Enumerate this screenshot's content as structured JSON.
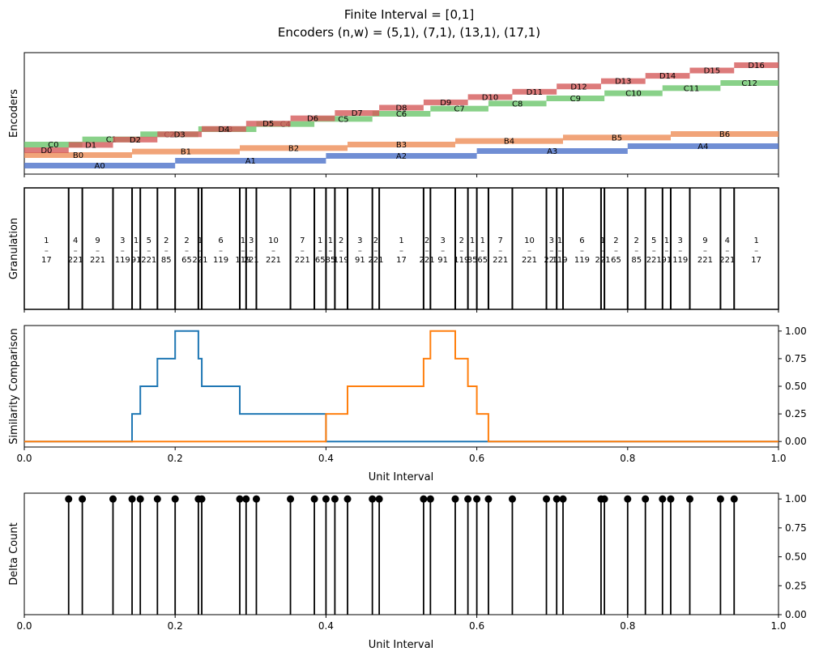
{
  "figure": {
    "title_line1": "Finite Interval = [0,1]",
    "title_line2": "Encoders (n,w) = (5,1), (7,1), (13,1), (17,1)"
  },
  "colors": {
    "A": "#4c72c9",
    "B": "#ee8d58",
    "C": "#6cc66c",
    "D": "#d45a5a",
    "series1": "#1f77b4",
    "series2": "#ff7f0e",
    "black": "#000000"
  },
  "chart_data": [
    {
      "panel": "encoders",
      "type": "bar",
      "ylabel": "Encoders",
      "xlim": [
        0,
        1
      ],
      "bar_label_prefix": {
        "A": "A",
        "B": "B",
        "C": "C",
        "D": "D"
      },
      "encoders": [
        {
          "key": "A",
          "n": 5
        },
        {
          "key": "B",
          "n": 7
        },
        {
          "key": "C",
          "n": 13
        },
        {
          "key": "D",
          "n": 17
        }
      ]
    },
    {
      "panel": "granulation",
      "type": "bar",
      "ylabel": "Granulation",
      "xlim": [
        0,
        1
      ],
      "boundaries": [
        0,
        0.0588,
        0.0769,
        0.1176,
        0.1429,
        0.1538,
        0.1765,
        0.2,
        0.2308,
        0.2353,
        0.2857,
        0.2941,
        0.3077,
        0.3529,
        0.3846,
        0.4,
        0.4118,
        0.4286,
        0.4615,
        0.4706,
        0.5294,
        0.5385,
        0.5714,
        0.5882,
        0.6,
        0.6154,
        0.6471,
        0.6923,
        0.7059,
        0.7143,
        0.7647,
        0.7692,
        0.8,
        0.8235,
        0.8462,
        0.8571,
        0.8824,
        0.9231,
        0.9412,
        1.0
      ],
      "fractions": [
        {
          "num": "1",
          "den": "17"
        },
        {
          "num": "4",
          "den": "221"
        },
        {
          "num": "9",
          "den": "221"
        },
        {
          "num": "3",
          "den": "119"
        },
        {
          "num": "1",
          "den": "91"
        },
        {
          "num": "5",
          "den": "221"
        },
        {
          "num": "2",
          "den": "85"
        },
        {
          "num": "2",
          "den": "65"
        },
        {
          "num": "1",
          "den": "221"
        },
        {
          "num": "6",
          "den": "119"
        },
        {
          "num": "1",
          "den": "119"
        },
        {
          "num": "3",
          "den": "221"
        },
        {
          "num": "10",
          "den": "221"
        },
        {
          "num": "7",
          "den": "221"
        },
        {
          "num": "1",
          "den": "65"
        },
        {
          "num": "1",
          "den": "85"
        },
        {
          "num": "2",
          "den": "119"
        },
        {
          "num": "3",
          "den": "91"
        },
        {
          "num": "2",
          "den": "221"
        },
        {
          "num": "1",
          "den": "17"
        },
        {
          "num": "2",
          "den": "221"
        },
        {
          "num": "3",
          "den": "91"
        },
        {
          "num": "2",
          "den": "119"
        },
        {
          "num": "1",
          "den": "85"
        },
        {
          "num": "1",
          "den": "65"
        },
        {
          "num": "7",
          "den": "221"
        },
        {
          "num": "10",
          "den": "221"
        },
        {
          "num": "3",
          "den": "221"
        },
        {
          "num": "1",
          "den": "119"
        },
        {
          "num": "6",
          "den": "119"
        },
        {
          "num": "1",
          "den": "221"
        },
        {
          "num": "2",
          "den": "65"
        },
        {
          "num": "2",
          "den": "85"
        },
        {
          "num": "5",
          "den": "221"
        },
        {
          "num": "1",
          "den": "91"
        },
        {
          "num": "3",
          "den": "119"
        },
        {
          "num": "9",
          "den": "221"
        },
        {
          "num": "4",
          "den": "221"
        },
        {
          "num": "1",
          "den": "17"
        }
      ]
    },
    {
      "panel": "similarity",
      "type": "line",
      "ylabel": "Similarity Comparison",
      "xlabel": "Unit Interval",
      "xlim": [
        0,
        1
      ],
      "ylim": [
        -0.05,
        1.05
      ],
      "xticks": [
        "0.0",
        "0.2",
        "0.4",
        "0.6",
        "0.8",
        "1.0"
      ],
      "yticks": [
        "0.00",
        "0.25",
        "0.50",
        "0.75",
        "1.00"
      ],
      "series": [
        {
          "step_points": [
            [
              0,
              0
            ],
            [
              0.1429,
              0
            ],
            [
              0.1429,
              0.25
            ],
            [
              0.1538,
              0.25
            ],
            [
              0.1538,
              0.5
            ],
            [
              0.1765,
              0.5
            ],
            [
              0.1765,
              0.75
            ],
            [
              0.2,
              0.75
            ],
            [
              0.2,
              1
            ],
            [
              0.2308,
              1
            ],
            [
              0.2308,
              0.75
            ],
            [
              0.2353,
              0.75
            ],
            [
              0.2353,
              0.5
            ],
            [
              0.2857,
              0.5
            ],
            [
              0.2857,
              0.25
            ],
            [
              0.4,
              0.25
            ],
            [
              0.4,
              0
            ],
            [
              1,
              0
            ]
          ]
        },
        {
          "step_points": [
            [
              0,
              0
            ],
            [
              0.4,
              0
            ],
            [
              0.4,
              0.25
            ],
            [
              0.4286,
              0.25
            ],
            [
              0.4286,
              0.5
            ],
            [
              0.5294,
              0.5
            ],
            [
              0.5294,
              0.75
            ],
            [
              0.5385,
              0.75
            ],
            [
              0.5385,
              1
            ],
            [
              0.5714,
              1
            ],
            [
              0.5714,
              0.75
            ],
            [
              0.5882,
              0.75
            ],
            [
              0.5882,
              0.5
            ],
            [
              0.6,
              0.5
            ],
            [
              0.6,
              0.25
            ],
            [
              0.6154,
              0.25
            ],
            [
              0.6154,
              0
            ],
            [
              1,
              0
            ]
          ]
        }
      ]
    },
    {
      "panel": "delta",
      "type": "scatter",
      "ylabel": "Delta Count",
      "xlabel": "Unit Interval",
      "xlim": [
        0,
        1
      ],
      "ylim": [
        0,
        1.05
      ],
      "xticks": [
        "0.0",
        "0.2",
        "0.4",
        "0.6",
        "0.8",
        "1.0"
      ],
      "yticks": [
        "0.00",
        "0.25",
        "0.50",
        "0.75",
        "1.00"
      ],
      "x": [
        0.0588,
        0.0769,
        0.1176,
        0.1429,
        0.1538,
        0.1765,
        0.2,
        0.2308,
        0.2353,
        0.2857,
        0.2941,
        0.3077,
        0.3529,
        0.3846,
        0.4,
        0.4118,
        0.4286,
        0.4615,
        0.4706,
        0.5294,
        0.5385,
        0.5714,
        0.5882,
        0.6,
        0.6154,
        0.6471,
        0.6923,
        0.7059,
        0.7143,
        0.7647,
        0.7692,
        0.8,
        0.8235,
        0.8462,
        0.8571,
        0.8824,
        0.9231,
        0.9412
      ],
      "y": [
        1,
        1,
        1,
        1,
        1,
        1,
        1,
        1,
        1,
        1,
        1,
        1,
        1,
        1,
        1,
        1,
        1,
        1,
        1,
        1,
        1,
        1,
        1,
        1,
        1,
        1,
        1,
        1,
        1,
        1,
        1,
        1,
        1,
        1,
        1,
        1,
        1,
        1
      ]
    }
  ]
}
